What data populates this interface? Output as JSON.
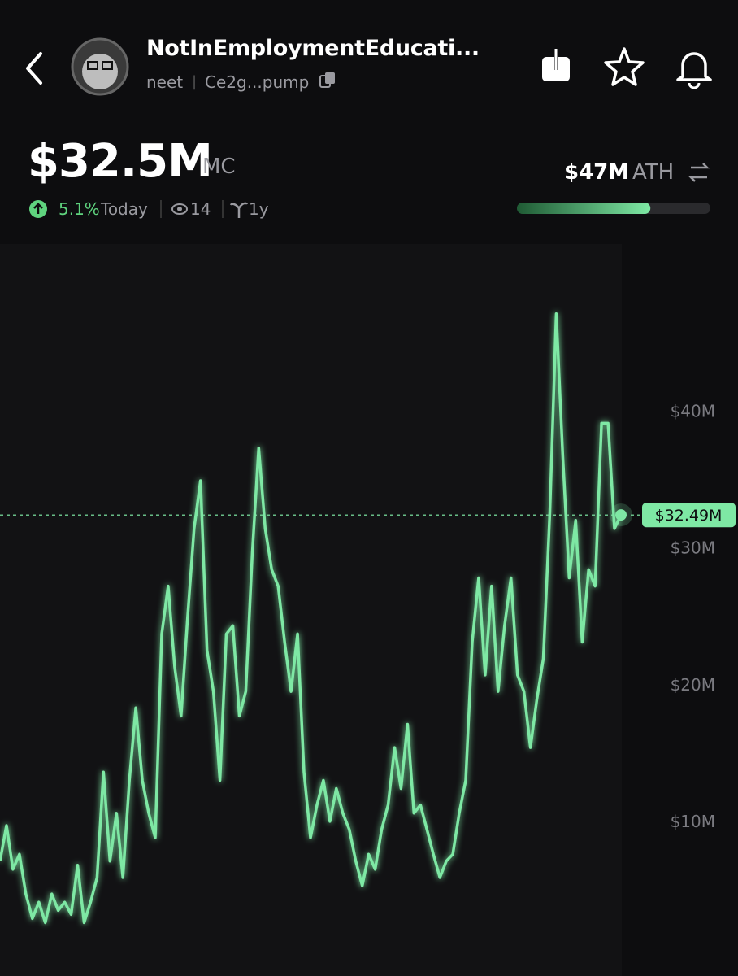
{
  "header": {
    "name": "NotInEmploymentEducati...",
    "ticker": "neet",
    "address": "Ce2g...pump",
    "market_cap": "$32.5M",
    "market_cap_label": "MC",
    "change": "5.1%",
    "change_period": "Today",
    "views": "14",
    "age": "1y",
    "ath": "$47M",
    "ath_label": "ATH",
    "ath_progress": 69
  },
  "chart_data": {
    "type": "line",
    "color": "#7ee8a4",
    "ylim": [
      -1.2,
      52.3
    ],
    "yticks": [
      {
        "value": 10,
        "label": "$10M"
      },
      {
        "value": 20,
        "label": "$20M"
      },
      {
        "value": 30,
        "label": "$30M"
      },
      {
        "value": 40,
        "label": "$40M"
      }
    ],
    "current_value": 32.49,
    "current_label": "$32.49M",
    "series": [
      {
        "color": "#7ee8a4",
        "values": [
          7.2,
          9.8,
          6.6,
          7.7,
          4.8,
          3.0,
          4.2,
          2.7,
          4.8,
          3.6,
          4.2,
          3.3,
          6.9,
          2.7,
          4.2,
          6.0,
          13.7,
          7.2,
          10.7,
          6.0,
          13.1,
          18.4,
          13.1,
          10.7,
          8.9,
          23.8,
          27.3,
          21.4,
          17.8,
          25.0,
          31.5,
          35.0,
          22.6,
          19.6,
          13.1,
          23.8,
          24.4,
          17.8,
          19.6,
          29.7,
          37.4,
          31.5,
          28.5,
          27.3,
          23.2,
          19.6,
          23.8,
          13.7,
          8.9,
          11.3,
          13.1,
          10.1,
          12.5,
          10.7,
          9.5,
          7.2,
          5.4,
          7.7,
          6.6,
          9.5,
          11.3,
          15.5,
          12.5,
          17.2,
          10.7,
          11.3,
          9.5,
          7.7,
          6.0,
          7.2,
          7.7,
          10.7,
          13.1,
          23.2,
          27.9,
          20.8,
          27.3,
          19.6,
          24.4,
          27.9,
          20.8,
          19.6,
          15.5,
          19.0,
          22.0,
          32.7,
          47.2,
          36.8,
          27.9,
          32.1,
          23.2,
          28.5,
          27.3,
          39.2,
          39.2,
          31.5,
          32.5
        ]
      }
    ]
  }
}
